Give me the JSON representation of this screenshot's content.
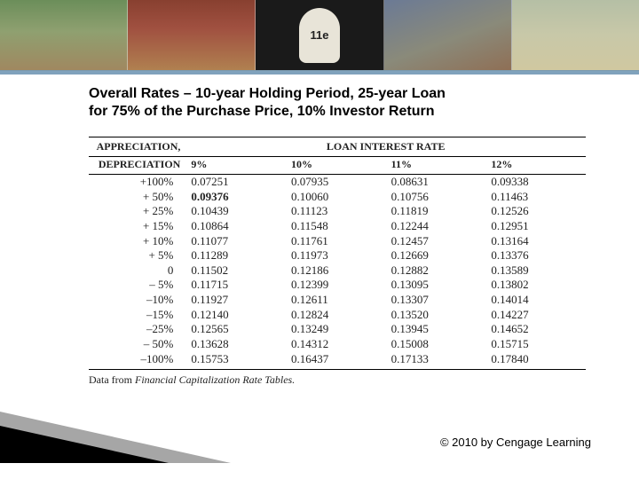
{
  "banner": {
    "edition_label": "11e"
  },
  "title": "Overall Rates – 10-year Holding Period, 25-year Loan for 75% of the Purchase Price, 10% Investor Return",
  "table": {
    "row_header_top": "APPRECIATION,",
    "row_header_bottom": "DEPRECIATION",
    "col_group_label": "LOAN INTEREST RATE",
    "columns": [
      "9%",
      "10%",
      "11%",
      "12%"
    ],
    "categories": [
      "+100%",
      "+ 50%",
      "+ 25%",
      "+ 15%",
      "+ 10%",
      "+  5%",
      "0",
      "–  5%",
      "–10%",
      "–15%",
      "–25%",
      "– 50%",
      "–100%"
    ],
    "rows": [
      [
        "0.07251",
        "0.07935",
        "0.08631",
        "0.09338"
      ],
      [
        "0.09376",
        "0.10060",
        "0.10756",
        "0.11463"
      ],
      [
        "0.10439",
        "0.11123",
        "0.11819",
        "0.12526"
      ],
      [
        "0.10864",
        "0.11548",
        "0.12244",
        "0.12951"
      ],
      [
        "0.11077",
        "0.11761",
        "0.12457",
        "0.13164"
      ],
      [
        "0.11289",
        "0.11973",
        "0.12669",
        "0.13376"
      ],
      [
        "0.11502",
        "0.12186",
        "0.12882",
        "0.13589"
      ],
      [
        "0.11715",
        "0.12399",
        "0.13095",
        "0.13802"
      ],
      [
        "0.11927",
        "0.12611",
        "0.13307",
        "0.14014"
      ],
      [
        "0.12140",
        "0.12824",
        "0.13520",
        "0.14227"
      ],
      [
        "0.12565",
        "0.13249",
        "0.13945",
        "0.14652"
      ],
      [
        "0.13628",
        "0.14312",
        "0.15008",
        "0.15715"
      ],
      [
        "0.15753",
        "0.16437",
        "0.17133",
        "0.17840"
      ]
    ],
    "bold_cells": [
      [
        1,
        0
      ]
    ],
    "footnote_prefix": "Data from ",
    "footnote_italic": "Financial Capitalization Rate Tables.",
    "styling": {
      "font_family": "Times New Roman",
      "font_size_pt": 10,
      "border_color": "#000000",
      "text_color": "#222222"
    }
  },
  "copyright": "© 2010 by Cengage Learning",
  "colors": {
    "banner_underline": "#80a2bc",
    "background": "#ffffff",
    "title_color": "#000000"
  }
}
